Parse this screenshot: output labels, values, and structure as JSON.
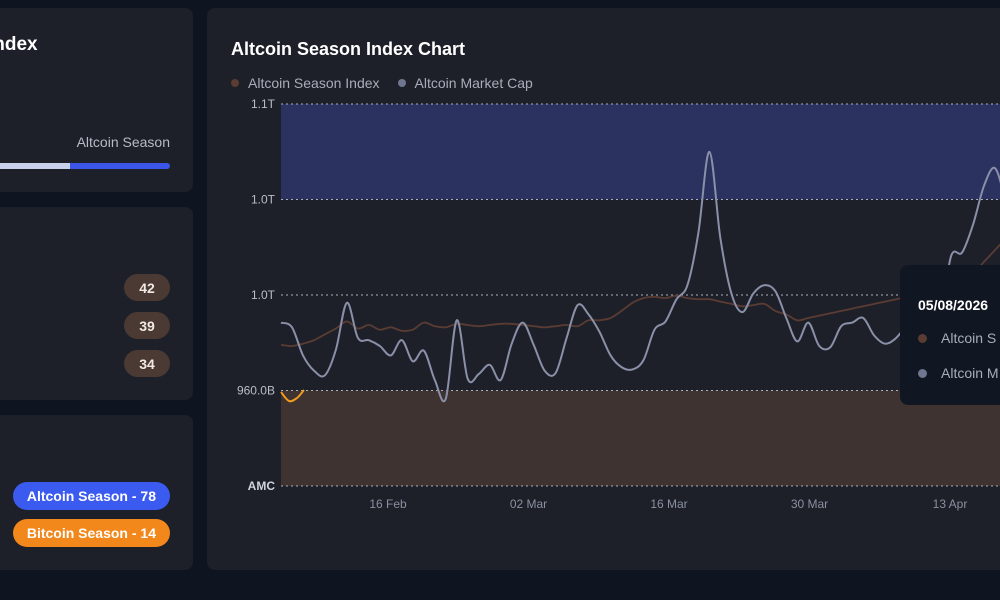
{
  "index_card": {
    "title": "Index",
    "season_label": "Altcoin Season",
    "meter_fraction": 0.45
  },
  "rank_card": {
    "values": [
      "42",
      "39",
      "34"
    ]
  },
  "season_card": {
    "altcoin_label": "Altcoin Season - 78",
    "bitcoin_label": "Bitcoin Season - 14"
  },
  "chart": {
    "title": "Altcoin Season Index Chart",
    "legend": [
      {
        "label": "Altcoin Season Index",
        "color": "#5a3c33"
      },
      {
        "label": "Altcoin Market Cap",
        "color": "#6f7690"
      }
    ],
    "tooltip": {
      "date": "05/08/2026",
      "rows": [
        "Altcoin S",
        "Altcoin M"
      ]
    }
  },
  "chart_data": {
    "type": "line",
    "y_ticks": [
      "1.1T",
      "1.0T",
      "1.0T",
      "960.0B",
      "AMC"
    ],
    "x_ticks": [
      "16 Feb",
      "02 Mar",
      "16 Mar",
      "30 Mar",
      "13 Apr"
    ],
    "grid": true,
    "legend_placement": "top-left",
    "bands": [
      {
        "name": "altcoin-season-zone",
        "color": "#2c3260"
      },
      {
        "name": "bitcoin-season-zone",
        "color": "#3e3331"
      }
    ],
    "series": [
      {
        "name": "Altcoin Market Cap",
        "color": "#8a90a8",
        "values": [
          58,
          54,
          30,
          17,
          13,
          35,
          75,
          45,
          43,
          38,
          30,
          43,
          25,
          34,
          9,
          -7,
          60,
          10,
          14,
          22,
          9,
          40,
          58,
          39,
          17,
          15,
          45,
          73,
          65,
          50,
          30,
          20,
          18,
          26,
          52,
          59,
          78,
          90,
          135,
          204,
          130,
          83,
          67,
          83,
          90,
          85,
          62,
          42,
          58,
          38,
          37,
          55,
          58,
          62,
          47,
          40,
          45,
          58,
          85,
          78,
          64,
          115,
          118,
          142,
          175,
          190,
          160,
          120
        ]
      },
      {
        "name": "Altcoin Season Index",
        "color": "#5a3c33",
        "values": [
          39,
          38,
          40,
          43,
          48,
          53,
          59,
          53,
          56,
          52,
          54,
          51,
          52,
          58,
          55,
          54,
          57,
          56,
          55,
          56,
          57,
          57,
          56,
          55,
          54,
          55,
          56,
          55,
          60,
          60,
          62,
          68,
          75,
          79,
          80,
          79,
          81,
          79,
          78,
          78,
          76,
          74,
          72,
          73,
          74,
          68,
          65,
          60,
          62,
          64,
          66,
          68,
          70,
          72,
          74,
          76,
          78,
          80,
          82,
          84,
          88,
          92,
          96,
          100,
          110,
          120,
          130,
          140
        ]
      }
    ]
  }
}
